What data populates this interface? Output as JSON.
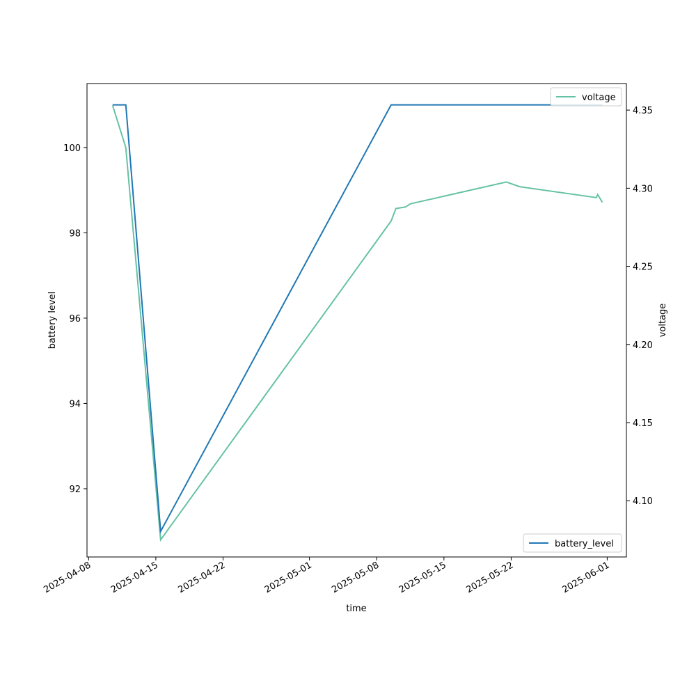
{
  "chart_data": {
    "type": "line",
    "xlabel": "time",
    "ylabel_left": "battery level",
    "ylabel_right": "voltage",
    "x_ticks": [
      "2025-04-08",
      "2025-04-15",
      "2025-04-22",
      "2025-05-01",
      "2025-05-08",
      "2025-05-15",
      "2025-05-22",
      "2025-06-01"
    ],
    "xlim": [
      "2025-04-07 20:00",
      "2025-06-03 00:00"
    ],
    "ylim_left": [
      90.4,
      101.5
    ],
    "ylim_right": [
      4.064,
      4.367
    ],
    "y_ticks_left": [
      92,
      94,
      96,
      98,
      100
    ],
    "y_ticks_right": [
      4.1,
      4.15,
      4.2,
      4.25,
      4.3,
      4.35
    ],
    "grid": false,
    "legend_left": {
      "placement": "lower-right",
      "label": "battery_level"
    },
    "legend_right": {
      "placement": "upper-right",
      "label": "voltage"
    },
    "series": [
      {
        "name": "battery_level",
        "axis": "left",
        "color": "#1f77b4",
        "points": [
          [
            "2025-04-10 12:00",
            101
          ],
          [
            "2025-04-11 21:00",
            101
          ],
          [
            "2025-04-15 12:00",
            91
          ],
          [
            "2025-05-09 12:00",
            101
          ],
          [
            "2025-05-31 12:00",
            101
          ]
        ]
      },
      {
        "name": "voltage",
        "axis": "right",
        "color": "#66c2a5",
        "points": [
          [
            "2025-04-10 12:00",
            4.353
          ],
          [
            "2025-04-11 21:00",
            4.326
          ],
          [
            "2025-04-15 12:00",
            4.075
          ],
          [
            "2025-05-09 12:00",
            4.279
          ],
          [
            "2025-05-10 00:00",
            4.287
          ],
          [
            "2025-05-11 00:00",
            4.288
          ],
          [
            "2025-05-11 12:00",
            4.29
          ],
          [
            "2025-05-21 12:00",
            4.304
          ],
          [
            "2025-05-22 21:00",
            4.301
          ],
          [
            "2025-05-30 21:00",
            4.294
          ],
          [
            "2025-05-31 00:00",
            4.296
          ],
          [
            "2025-05-31 12:00",
            4.291
          ]
        ]
      }
    ]
  }
}
